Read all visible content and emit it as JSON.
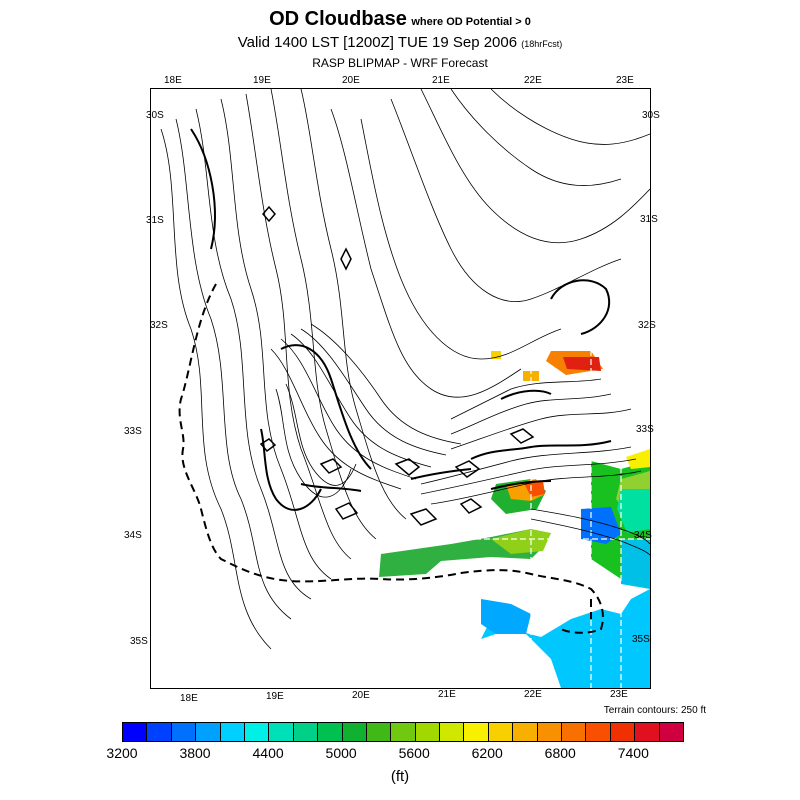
{
  "title": {
    "main": "OD Cloudbase",
    "qualifier": "where OD Potential > 0",
    "valid": "Valid 1400 LST [1200Z] TUE 19 Sep 2006",
    "forecast_hours": "(18hrFcst)",
    "subtitle": "RASP BLIPMAP - WRF Forecast"
  },
  "lon_top": [
    "18E",
    "19E",
    "20E",
    "21E",
    "22E",
    "23E"
  ],
  "lon_bottom": [
    "18E",
    "19E",
    "20E",
    "21E",
    "22E",
    "23E"
  ],
  "lat_left": [
    "30S",
    "31S",
    "32S",
    "33S",
    "34S",
    "35S"
  ],
  "lat_right": [
    "30S",
    "31S",
    "32S",
    "33S",
    "34S",
    "35S"
  ],
  "terrain_note": "Terrain contours: 250 ft",
  "colorbar": {
    "colors": [
      "#0000ff",
      "#0040ff",
      "#0070ff",
      "#00a0ff",
      "#00d0ff",
      "#00f0e8",
      "#00e0b8",
      "#00d088",
      "#00c050",
      "#10b030",
      "#40b818",
      "#70c810",
      "#a0d800",
      "#d0e800",
      "#f8f000",
      "#f8d000",
      "#f8b000",
      "#f89000",
      "#f87000",
      "#f85000",
      "#f03000",
      "#e01020",
      "#d00040"
    ],
    "labels": [
      "3200",
      "3800",
      "4400",
      "5000",
      "5600",
      "6200",
      "6800",
      "7400"
    ],
    "unit": "(ft)"
  }
}
